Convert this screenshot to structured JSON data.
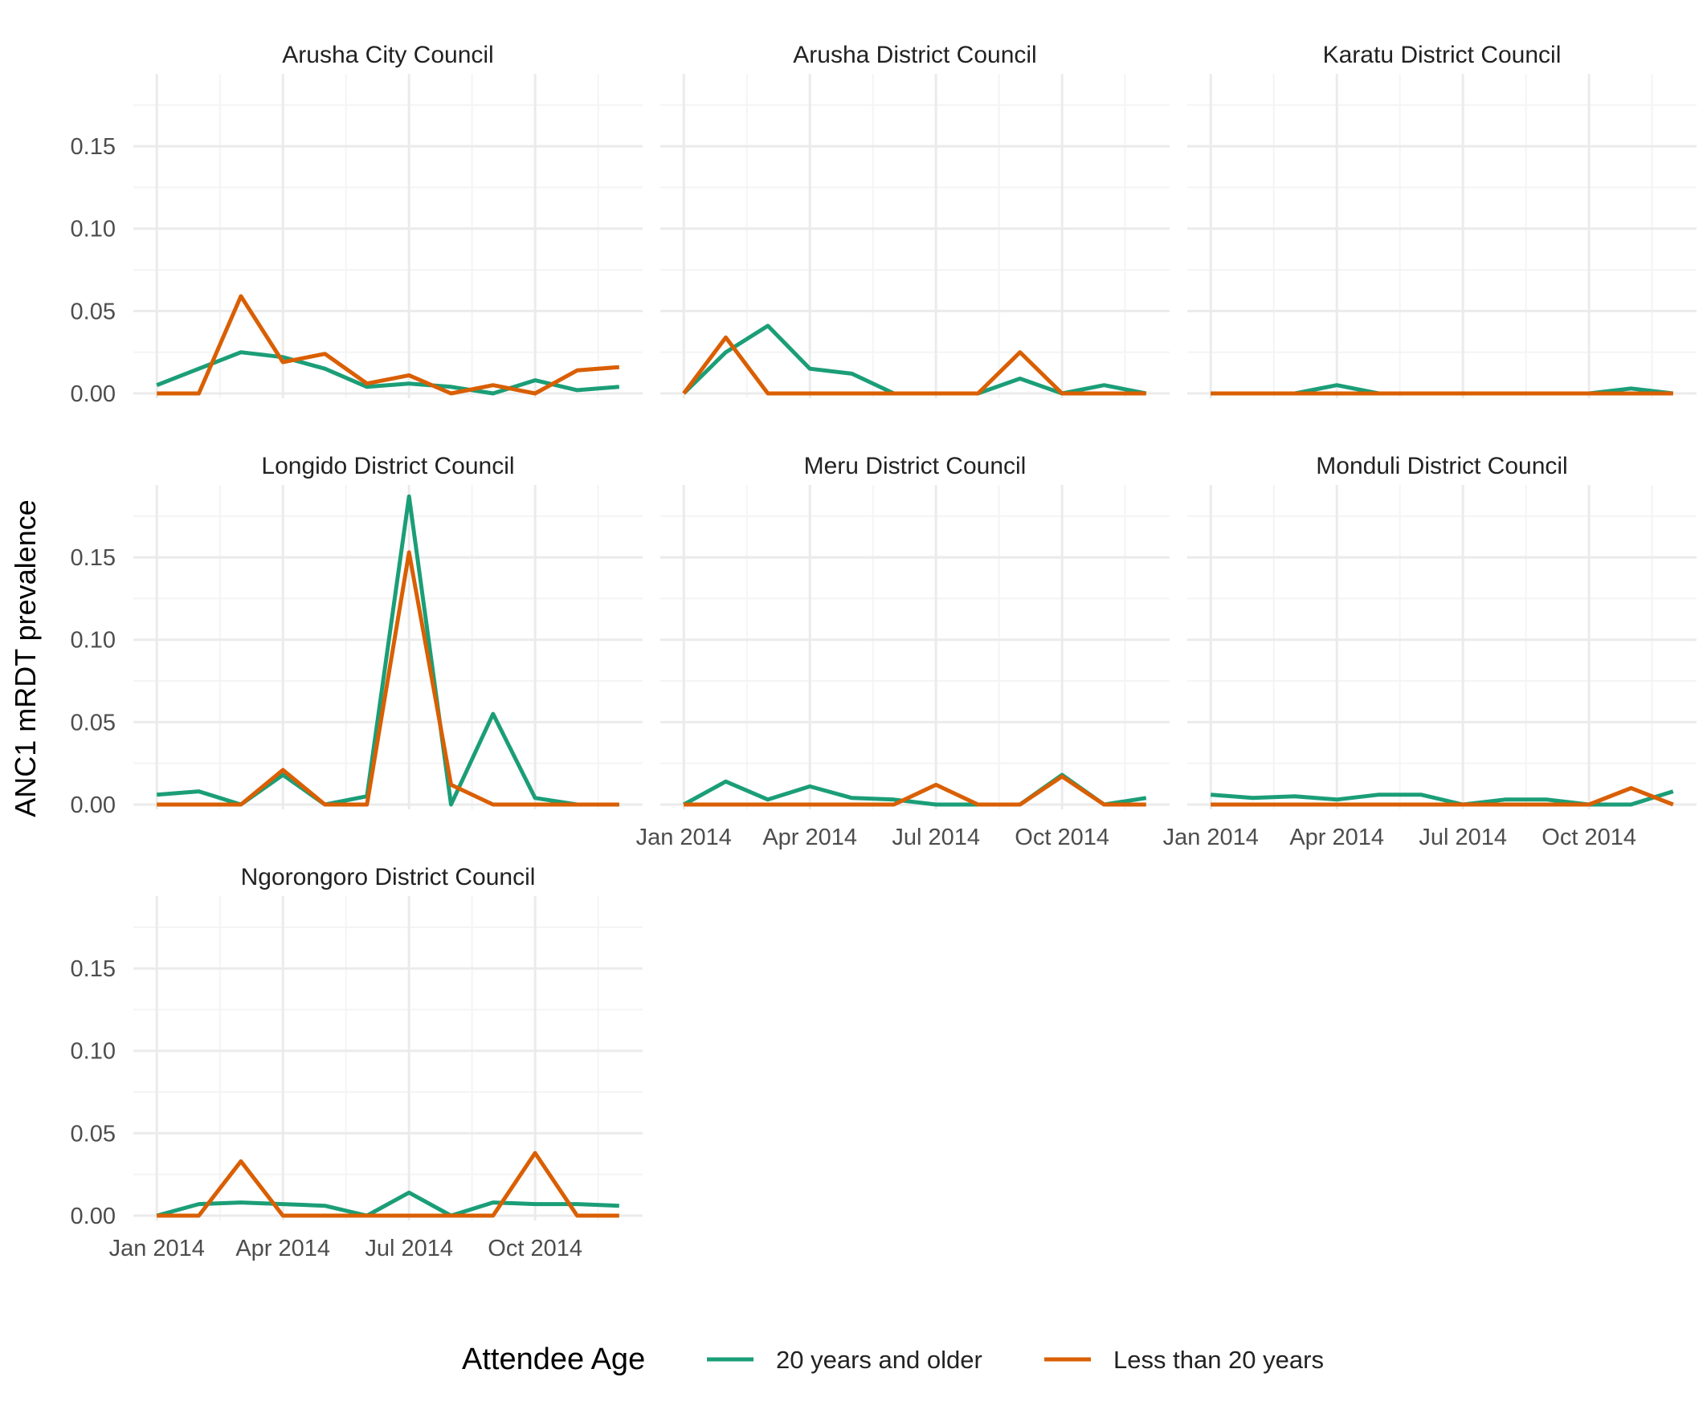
{
  "chart_data": {
    "type": "line",
    "layout": "faceted 3-column grid",
    "ylabel": "ANC1 mRDT prevalence",
    "xlabel": "",
    "ylim": [
      0,
      0.19
    ],
    "y_ticks": [
      0.0,
      0.05,
      0.1,
      0.15
    ],
    "y_tick_labels": [
      "0.00",
      "0.05",
      "0.10",
      "0.15"
    ],
    "x_tick_labels": [
      "Jan 2014",
      "Apr 2014",
      "Jul 2014",
      "Oct 2014"
    ],
    "x_tick_months": [
      0,
      3,
      6,
      9
    ],
    "xlim_months": [
      0,
      11
    ],
    "grid": true,
    "legend": {
      "title": "Attendee Age",
      "position": "bottom",
      "entries": [
        "20 years and older",
        "Less than 20 years"
      ]
    },
    "colors": {
      "20 years and older": "#1b9e77",
      "Less than 20 years": "#d95f02",
      "grid_major": "#ebebeb",
      "grid_minor": "#f4f4f4",
      "text": "#222222",
      "tick_text": "#4d4d4d"
    },
    "panels": [
      {
        "title": "Arusha City Council",
        "series": [
          {
            "name": "20 years and older",
            "x": [
              0,
              1,
              2,
              3,
              4,
              5,
              6,
              7,
              8,
              9,
              10,
              11
            ],
            "values": [
              0.005,
              0.015,
              0.025,
              0.022,
              0.015,
              0.004,
              0.006,
              0.004,
              0.0,
              0.008,
              0.002,
              0.004
            ]
          },
          {
            "name": "Less than 20 years",
            "x": [
              0,
              1,
              2,
              3,
              4,
              5,
              6,
              7,
              8,
              9,
              10,
              11
            ],
            "values": [
              0.0,
              0.0,
              0.059,
              0.019,
              0.024,
              0.006,
              0.011,
              0.0,
              0.005,
              0.0,
              0.014,
              0.016
            ]
          }
        ]
      },
      {
        "title": "Arusha District Council",
        "series": [
          {
            "name": "20 years and older",
            "x": [
              0,
              1,
              2,
              3,
              4,
              5,
              6,
              7,
              8,
              9,
              10,
              11
            ],
            "values": [
              0.0,
              0.025,
              0.041,
              0.015,
              0.012,
              0.0,
              0.0,
              0.0,
              0.009,
              0.0,
              0.005,
              0.0
            ]
          },
          {
            "name": "Less than 20 years",
            "x": [
              0,
              1,
              2,
              3,
              4,
              5,
              6,
              7,
              8,
              9,
              10,
              11
            ],
            "values": [
              0.0,
              0.034,
              0.0,
              0.0,
              0.0,
              0.0,
              0.0,
              0.0,
              0.025,
              0.0,
              0.0,
              0.0
            ]
          }
        ]
      },
      {
        "title": "Karatu District Council",
        "series": [
          {
            "name": "20 years and older",
            "x": [
              0,
              1,
              2,
              3,
              4,
              5,
              6,
              7,
              8,
              9,
              10,
              11
            ],
            "values": [
              0.0,
              0.0,
              0.0,
              0.005,
              0.0,
              0.0,
              0.0,
              0.0,
              0.0,
              0.0,
              0.003,
              0.0
            ]
          },
          {
            "name": "Less than 20 years",
            "x": [
              0,
              1,
              2,
              3,
              4,
              5,
              6,
              7,
              8,
              9,
              10,
              11
            ],
            "values": [
              0.0,
              0.0,
              0.0,
              0.0,
              0.0,
              0.0,
              0.0,
              0.0,
              0.0,
              0.0,
              0.0,
              0.0
            ]
          }
        ]
      },
      {
        "title": "Longido District Council",
        "series": [
          {
            "name": "20 years and older",
            "x": [
              0,
              1,
              2,
              3,
              4,
              5,
              6,
              7,
              8,
              9,
              10,
              11
            ],
            "values": [
              0.006,
              0.008,
              0.0,
              0.018,
              0.0,
              0.005,
              0.187,
              0.0,
              0.055,
              0.004,
              0.0,
              0.0
            ]
          },
          {
            "name": "Less than 20 years",
            "x": [
              0,
              1,
              2,
              3,
              4,
              5,
              6,
              7,
              8,
              9,
              10,
              11
            ],
            "values": [
              0.0,
              0.0,
              0.0,
              0.021,
              0.0,
              0.0,
              0.153,
              0.012,
              0.0,
              0.0,
              0.0,
              0.0
            ]
          }
        ]
      },
      {
        "title": "Meru District Council",
        "series": [
          {
            "name": "20 years and older",
            "x": [
              0,
              1,
              2,
              3,
              4,
              5,
              6,
              7,
              8,
              9,
              10,
              11
            ],
            "values": [
              0.0,
              0.014,
              0.003,
              0.011,
              0.004,
              0.003,
              0.0,
              0.0,
              0.0,
              0.018,
              0.0,
              0.004
            ]
          },
          {
            "name": "Less than 20 years",
            "x": [
              0,
              1,
              2,
              3,
              4,
              5,
              6,
              7,
              8,
              9,
              10,
              11
            ],
            "values": [
              0.0,
              0.0,
              0.0,
              0.0,
              0.0,
              0.0,
              0.012,
              0.0,
              0.0,
              0.017,
              0.0,
              0.0
            ]
          }
        ]
      },
      {
        "title": "Monduli District Council",
        "series": [
          {
            "name": "20 years and older",
            "x": [
              0,
              1,
              2,
              3,
              4,
              5,
              6,
              7,
              8,
              9,
              10,
              11
            ],
            "values": [
              0.006,
              0.004,
              0.005,
              0.003,
              0.006,
              0.006,
              0.0,
              0.003,
              0.003,
              0.0,
              0.0,
              0.008
            ]
          },
          {
            "name": "Less than 20 years",
            "x": [
              0,
              1,
              2,
              3,
              4,
              5,
              6,
              7,
              8,
              9,
              10,
              11
            ],
            "values": [
              0.0,
              0.0,
              0.0,
              0.0,
              0.0,
              0.0,
              0.0,
              0.0,
              0.0,
              0.0,
              0.01,
              0.0
            ]
          }
        ]
      },
      {
        "title": "Ngorongoro District Council",
        "series": [
          {
            "name": "20 years and older",
            "x": [
              0,
              1,
              2,
              3,
              4,
              5,
              6,
              7,
              8,
              9,
              10,
              11
            ],
            "values": [
              0.0,
              0.007,
              0.008,
              0.007,
              0.006,
              0.0,
              0.014,
              0.0,
              0.008,
              0.007,
              0.007,
              0.006
            ]
          },
          {
            "name": "Less than 20 years",
            "x": [
              0,
              1,
              2,
              3,
              4,
              5,
              6,
              7,
              8,
              9,
              10,
              11
            ],
            "values": [
              0.0,
              0.0,
              0.033,
              0.0,
              0.0,
              0.0,
              0.0,
              0.0,
              0.0,
              0.038,
              0.0,
              0.0
            ]
          }
        ]
      }
    ]
  }
}
